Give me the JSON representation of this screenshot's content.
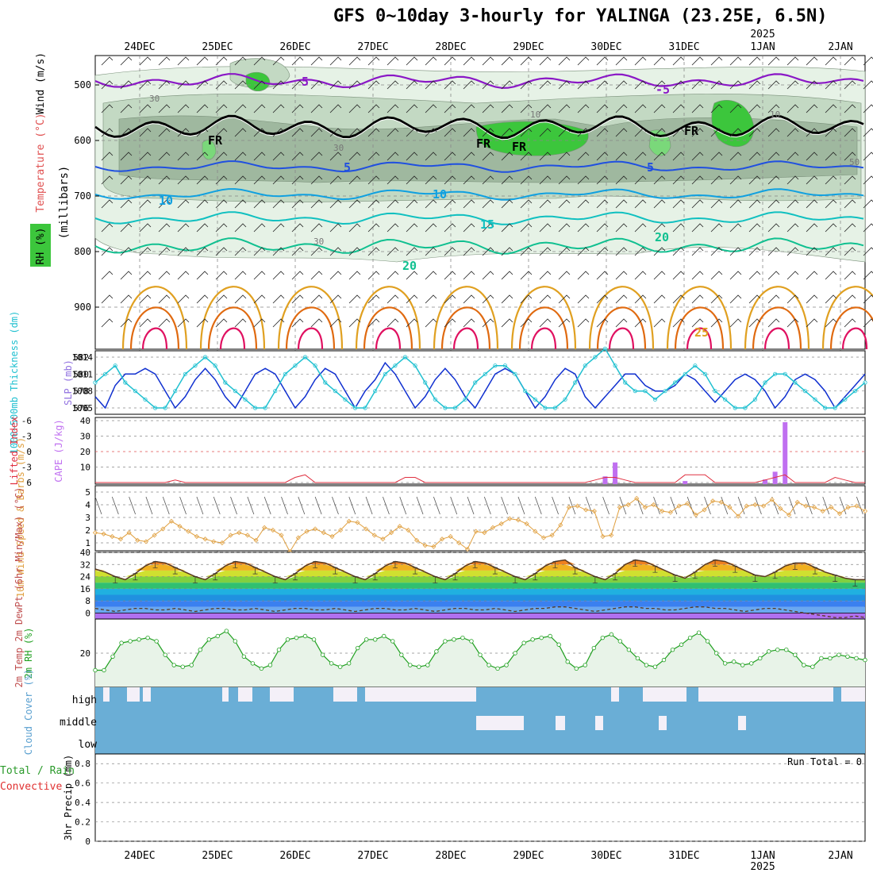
{
  "title": "GFS 0~10day 3-hourly for YALINGA (23.25E, 6.5N)",
  "dates": [
    "24DEC",
    "25DEC",
    "26DEC",
    "27DEC",
    "28DEC",
    "29DEC",
    "30DEC",
    "31DEC",
    "1JAN",
    "2JAN"
  ],
  "year_label": "2025",
  "colors": {
    "rh_light": "#e6f2e6",
    "rh_mid": "#c3d9c3",
    "rh_dark": "#9fb89f",
    "rh_sat": "#3cc63c",
    "t_minus5": "#8a18c6",
    "t_zero": "#000000",
    "t5": "#2050e0",
    "t10": "#10a0e0",
    "t15": "#10c0c0",
    "t20": "#10c090",
    "t25": "#e0a020",
    "t30": "#e06a10",
    "t35": "#e01060",
    "slp": "#1030d0",
    "thick": "#20c0d0",
    "li": "#e03040",
    "cape": "#c070f0",
    "wind10": "#e0a040",
    "rh2m": "#20a020",
    "cloud": "#6aaed6",
    "grid": "#888888"
  },
  "upper_panel": {
    "ylabel_parts": [
      "Wind (m/s)",
      "Temperature (°C)",
      "RH (%)"
    ],
    "ylabel_unit": "(millibars)",
    "yticks": [
      "500",
      "600",
      "700",
      "800",
      "900"
    ],
    "contour_labels": [
      "5",
      "-5",
      "FR",
      "FR",
      "FR",
      "FR",
      "5",
      "5",
      "10",
      "10",
      "15",
      "20",
      "20",
      "25",
      "30",
      "30",
      "30",
      "10",
      "10",
      "50"
    ]
  },
  "chart_data": [
    {
      "type": "line",
      "panel": "thickness_slp",
      "ylabel_left": "1000~500mb Thickness (dm)",
      "ylabel_right": "SLP (mb)",
      "yticks_left": [
        "576",
        "578",
        "580",
        "582"
      ],
      "yticks_right": [
        "1005",
        "1008",
        "1011",
        "1014"
      ],
      "series": [
        {
          "name": "SLP",
          "values": [
            1007,
            1005,
            1009,
            1011,
            1011,
            1012,
            1011,
            1008,
            1005,
            1007,
            1010,
            1012,
            1010,
            1007,
            1005,
            1008,
            1011,
            1012,
            1011,
            1008,
            1005,
            1007,
            1010,
            1012,
            1011,
            1008,
            1005,
            1008,
            1010,
            1013,
            1011,
            1008,
            1005,
            1007,
            1010,
            1012,
            1010,
            1007,
            1005,
            1008,
            1011,
            1012,
            1011,
            1008,
            1005,
            1007,
            1010,
            1012,
            1011,
            1007,
            1005,
            1007,
            1009,
            1011,
            1011,
            1009,
            1008,
            1008,
            1009,
            1011,
            1010,
            1008,
            1006,
            1008,
            1010,
            1011,
            1010,
            1008,
            1005,
            1007,
            1010,
            1011,
            1010,
            1008,
            1005,
            1007,
            1009,
            1011
          ]
        },
        {
          "name": "Thickness",
          "values": [
            579,
            580,
            581,
            579,
            578,
            577,
            576,
            576,
            578,
            580,
            581,
            582,
            581,
            579,
            578,
            577,
            576,
            576,
            578,
            580,
            581,
            582,
            581,
            579,
            578,
            577,
            576,
            576,
            578,
            580,
            581,
            582,
            581,
            579,
            577,
            576,
            576,
            577,
            579,
            580,
            581,
            581,
            580,
            578,
            577,
            576,
            576,
            577,
            579,
            581,
            582,
            583,
            581,
            579,
            578,
            578,
            577,
            578,
            579,
            580,
            581,
            580,
            578,
            577,
            576,
            576,
            577,
            579,
            580,
            580,
            579,
            578,
            577,
            576,
            576,
            577,
            578,
            579
          ]
        }
      ]
    },
    {
      "type": "bar",
      "panel": "cape_li",
      "ylabel_left": "Lifted Index",
      "ylabel_right": "CAPE (J/kg)",
      "yticks_left": [
        "6",
        "-3",
        "0",
        "-3",
        "-6"
      ],
      "yticks_right": [
        "10",
        "20",
        "30",
        "40"
      ],
      "cape_values": [
        0,
        0,
        0,
        0,
        0,
        0,
        0,
        0,
        0,
        0,
        0,
        0,
        0,
        0,
        0,
        0,
        0,
        0,
        0,
        0,
        0,
        0,
        0,
        0,
        0,
        0,
        0,
        0,
        0,
        0,
        0,
        0,
        0,
        0,
        0,
        0,
        0,
        0,
        0,
        0,
        0,
        0,
        0,
        0,
        0,
        0,
        0,
        0,
        0,
        0,
        0,
        5,
        14,
        0,
        0,
        0,
        0,
        0,
        0,
        2,
        0,
        0,
        0,
        0,
        0,
        0,
        0,
        3,
        8,
        40,
        0,
        0,
        0,
        0,
        0,
        0,
        0,
        0
      ],
      "li_values": [
        6,
        6,
        6,
        6,
        6,
        6,
        6,
        6,
        5,
        6,
        6,
        6,
        6,
        6,
        6,
        6,
        6,
        6,
        6,
        6,
        4,
        3,
        6,
        6,
        6,
        6,
        6,
        6,
        6,
        6,
        6,
        4,
        4,
        6,
        6,
        6,
        6,
        6,
        6,
        6,
        6,
        6,
        6,
        6,
        6,
        6,
        6,
        6,
        6,
        6,
        5,
        4,
        4,
        5,
        6,
        6,
        6,
        6,
        6,
        3,
        3,
        3,
        6,
        6,
        6,
        6,
        6,
        5,
        4,
        3,
        6,
        6,
        6,
        6,
        4,
        5,
        6,
        6
      ]
    },
    {
      "type": "line",
      "panel": "wind10m",
      "ylabel": "10m Wind Speed & Barbs (m/s)",
      "yticks": [
        "1",
        "2",
        "3",
        "4",
        "5"
      ],
      "values": [
        1.8,
        1.7,
        1.5,
        1.3,
        1.8,
        1.2,
        1.1,
        1.6,
        2.1,
        2.7,
        2.3,
        1.9,
        1.5,
        1.3,
        1.1,
        1.0,
        1.6,
        1.8,
        1.6,
        1.2,
        2.2,
        2.0,
        1.6,
        0.3,
        1.4,
        1.9,
        2.1,
        1.8,
        1.5,
        2.0,
        2.7,
        2.6,
        2.1,
        1.6,
        1.3,
        1.8,
        2.3,
        2.0,
        1.2,
        0.8,
        0.7,
        1.3,
        1.5,
        1.0,
        0.5,
        1.9,
        1.8,
        2.2,
        2.5,
        2.9,
        2.8,
        2.5,
        1.9,
        1.4,
        1.6,
        2.4,
        3.8,
        3.9,
        3.6,
        3.5,
        1.5,
        1.6,
        3.8,
        4.0,
        4.5,
        3.8,
        4.0,
        3.5,
        3.4,
        3.9,
        4.1,
        3.2,
        3.6,
        4.3,
        4.2,
        3.8,
        3.1,
        3.9,
        4.0,
        3.9,
        4.4,
        3.7,
        3.2,
        4.2,
        3.9,
        3.8,
        3.5,
        3.8,
        3.3,
        3.8,
        3.9,
        3.5
      ]
    },
    {
      "type": "area",
      "panel": "temp2m",
      "ylabel": "2m Temp 2m DewPt (6hr Min/Max) (°C)",
      "yticks": [
        "0",
        "8",
        "16",
        "24",
        "32",
        "40"
      ],
      "temp": [
        29,
        27,
        24,
        22,
        26,
        31,
        34,
        33,
        30,
        27,
        24,
        22,
        26,
        31,
        34,
        33,
        30,
        27,
        24,
        22,
        26,
        31,
        34,
        33,
        30,
        27,
        24,
        22,
        26,
        31,
        34,
        33,
        30,
        27,
        24,
        22,
        26,
        31,
        34,
        33,
        30,
        27,
        24,
        22,
        26,
        31,
        34,
        35,
        30,
        27,
        24,
        22,
        26,
        32,
        35,
        34,
        31,
        28,
        25,
        23,
        27,
        32,
        35,
        34,
        31,
        28,
        25,
        24,
        27,
        31,
        33,
        33,
        30,
        27,
        25,
        23,
        22,
        22
      ],
      "dewpt": [
        3,
        2,
        1,
        2,
        3,
        3,
        2,
        2,
        3,
        2,
        1,
        2,
        3,
        3,
        2,
        2,
        3,
        2,
        1,
        2,
        3,
        3,
        2,
        2,
        3,
        2,
        1,
        2,
        3,
        3,
        2,
        2,
        3,
        2,
        1,
        2,
        3,
        3,
        2,
        2,
        3,
        2,
        1,
        2,
        3,
        3,
        4,
        4,
        3,
        2,
        1,
        2,
        3,
        4,
        4,
        3,
        3,
        2,
        2,
        3,
        4,
        4,
        3,
        3,
        2,
        1,
        2,
        3,
        3,
        2,
        1,
        0,
        -1,
        -2,
        -3,
        -3,
        -2,
        -3
      ]
    },
    {
      "type": "area",
      "panel": "rh2m",
      "ylabel": "2m RH (%)",
      "yticks": [
        "20"
      ],
      "values": [
        10,
        10,
        18,
        26,
        27,
        28,
        29,
        27,
        19,
        13,
        12,
        13,
        22,
        28,
        30,
        33,
        27,
        18,
        14,
        11,
        13,
        22,
        28,
        29,
        30,
        28,
        19,
        14,
        12,
        14,
        23,
        28,
        28,
        30,
        27,
        19,
        13,
        12,
        13,
        21,
        27,
        28,
        29,
        27,
        19,
        13,
        11,
        13,
        20,
        26,
        28,
        29,
        30,
        25,
        15,
        11,
        13,
        23,
        29,
        31,
        27,
        22,
        17,
        13,
        12,
        16,
        22,
        25,
        29,
        32,
        27,
        20,
        14,
        15,
        13,
        14,
        17,
        21,
        22,
        22,
        19,
        13,
        12,
        17,
        17,
        19,
        18,
        17,
        16
      ]
    },
    {
      "type": "bar",
      "panel": "cloud",
      "ylabel": "Cloud Cover (%)",
      "levels": [
        "high",
        "middle",
        "low"
      ]
    },
    {
      "type": "bar",
      "panel": "precip",
      "ylabel_parts": [
        "Total / Rain",
        "Convective"
      ],
      "ylabel": "3hr Precip (mm)",
      "yticks": [
        "0",
        "0.2",
        "0.4",
        "0.6",
        "0.8"
      ],
      "run_total_label": "Run Total = 0",
      "values": []
    }
  ]
}
